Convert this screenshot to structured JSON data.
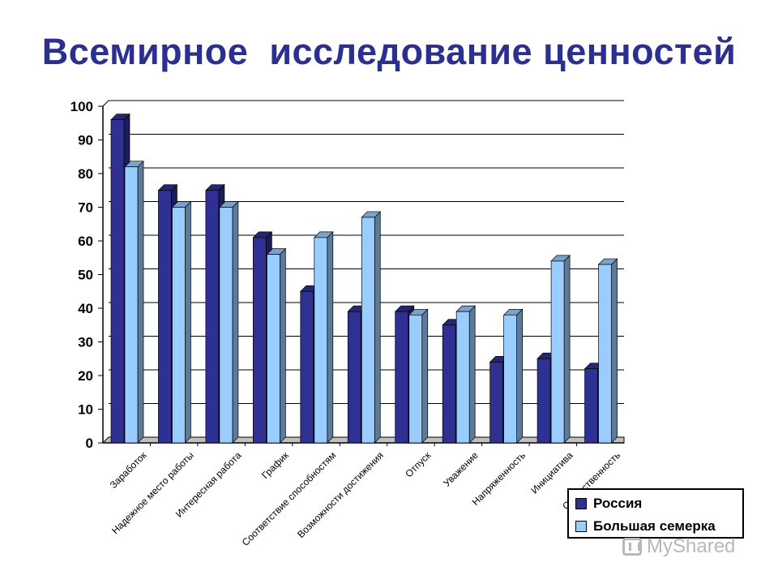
{
  "title": "Всемирное  исследование ценностей",
  "chart_data": {
    "type": "bar",
    "title": "Всемирное  исследование ценностей",
    "categories": [
      "Заработок",
      "Надежное место работы",
      "Интересная работа",
      "График",
      "Соответствие способностям",
      "Возможности достижения",
      "Отпуск",
      "Уважение",
      "Напряженность",
      "Инициатива",
      "Ответственность"
    ],
    "series": [
      {
        "name": "Россия",
        "color": "#2e3192",
        "values": [
          96,
          75,
          75,
          61,
          45,
          39,
          39,
          35,
          24,
          25,
          22
        ]
      },
      {
        "name": "Большая семерка",
        "color": "#99ccff",
        "values": [
          82,
          70,
          70,
          56,
          61,
          67,
          38,
          39,
          38,
          54,
          53
        ]
      }
    ],
    "ylim": [
      0,
      100
    ],
    "yticks": [
      "0",
      "10",
      "20",
      "30",
      "40",
      "50",
      "60",
      "70",
      "80",
      "90",
      "100"
    ],
    "grid": true,
    "legend_position": "bottom-right",
    "xlabel": "",
    "ylabel": ""
  },
  "watermark": "MyShared"
}
